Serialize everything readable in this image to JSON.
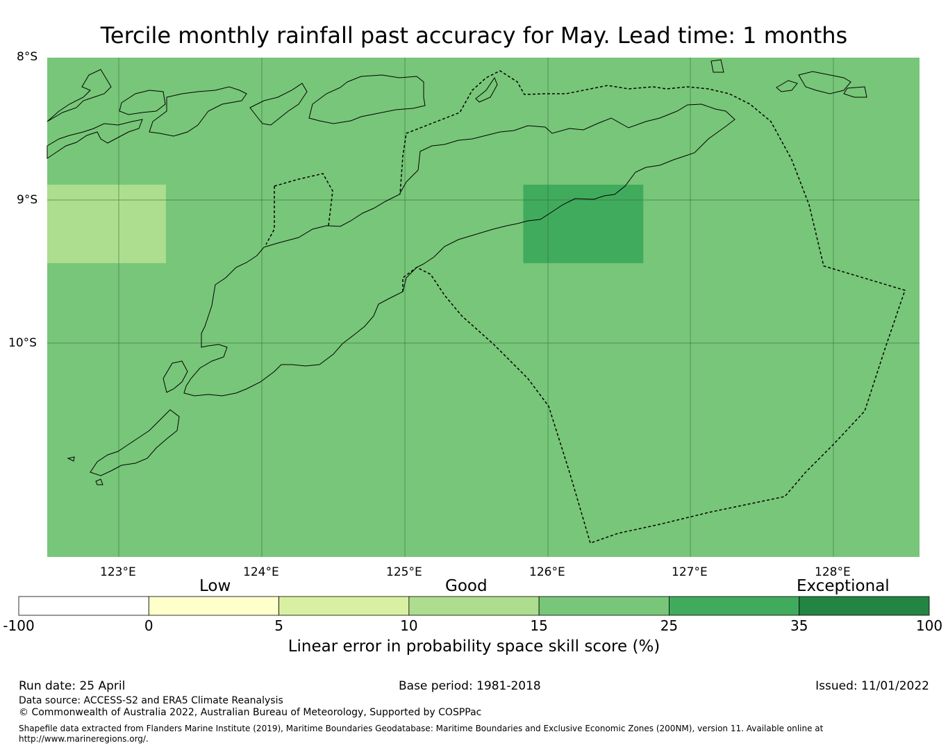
{
  "title": "Tercile monthly rainfall past accuracy for May. Lead time: 1 months",
  "map": {
    "lat_labels": [
      "8°S",
      "9°S",
      "10°S"
    ],
    "lon_labels": [
      "123°E",
      "124°E",
      "125°E",
      "126°E",
      "127°E",
      "128°E"
    ],
    "lon_range": [
      122.5,
      128.6
    ],
    "lat_range": [
      -8.0,
      -11.5
    ],
    "base_color": "#78c679",
    "skill_cells": [
      {
        "lon": [
          122.5,
          123.33
        ],
        "lat": [
          -8.89,
          -9.44
        ],
        "color": "#addd8e",
        "range": "10-15"
      },
      {
        "lon": [
          125.83,
          126.67
        ],
        "lat": [
          -8.89,
          -9.44
        ],
        "color": "#41ab5d",
        "range": "25-35"
      }
    ]
  },
  "colorbar": {
    "group_labels": [
      "Low",
      "Good",
      "Exceptional"
    ],
    "ticks": [
      "-100",
      "0",
      "5",
      "10",
      "15",
      "25",
      "35",
      "100"
    ],
    "colors": [
      "#ffffff",
      "#ffffcc",
      "#d9f0a3",
      "#addd8e",
      "#78c679",
      "#41ab5d",
      "#238443"
    ],
    "label": "Linear error in probability space skill score (%)"
  },
  "footer": {
    "run_date": "Run date: 25 April",
    "base_period": "Base period: 1981-2018",
    "issued": "Issued: 11/01/2022",
    "data_source": "Data source: ACCESS-S2 and ERA5 Climate Reanalysis",
    "copyright": "© Commonwealth of Australia 2022, Australian Bureau of Meteorology, Supported by COSPPac",
    "shapefile_line1": "Shapefile data extracted from Flanders Marine Institute (2019), Maritime Boundaries Geodatabase: Maritime Boundaries and Exclusive Economic Zones (200NM), version 11. Available online at",
    "shapefile_line2": "http://www.marineregions.org/."
  }
}
